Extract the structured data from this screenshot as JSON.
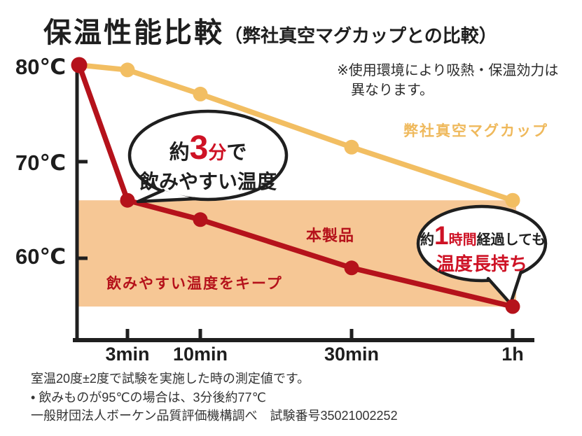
{
  "title": {
    "main": "保温性能比較",
    "sub": "（弊社真空マグカップとの比較）"
  },
  "note": {
    "line1": "※使用環境により吸熱・保温効力は",
    "line2": "異なります。"
  },
  "chart_data": {
    "type": "line",
    "title": "保温性能比較（弊社真空マグカップとの比較）",
    "x_minutes": [
      0,
      3,
      10,
      30,
      60
    ],
    "x_tick_labels": [
      "3min",
      "10min",
      "30min",
      "1h"
    ],
    "y_tick_labels": [
      "80℃",
      "70℃",
      "60℃"
    ],
    "y_tick_values": [
      80,
      70,
      60
    ],
    "ylim": [
      52,
      81
    ],
    "grid": false,
    "series": [
      {
        "name": "弊社真空マグカップ",
        "color": "#F2BE62",
        "values": [
          80,
          79.5,
          77,
          71.5,
          66
        ]
      },
      {
        "name": "本製品",
        "color": "#B5121B",
        "values": [
          80,
          66,
          64,
          59,
          55
        ]
      }
    ],
    "band": {
      "temp_from": 55,
      "temp_to": 66,
      "color": "#F6C795",
      "label": "飲みやすい温度をキープ"
    }
  },
  "annotations": {
    "bubble_3min": {
      "prefix": "約",
      "big": "3",
      "unit": "分",
      "suffix": "で",
      "line2": "飲みやすい温度"
    },
    "bubble_1h": {
      "prefix": "約",
      "big": "1",
      "unit": "時間",
      "suffix": "経過しても",
      "line2": "温度長持ち"
    }
  },
  "footer": {
    "line1": "室温20度±2度で試験を実施した時の測定値です。",
    "line2": "• 飲みものが95℃の場合は、3分後約77℃",
    "line3": "一般財団法人ボーケン品質評価機構調べ　試験番号35021002252"
  },
  "colors": {
    "red": "#B5121B",
    "bright_red": "#CE1225",
    "yellow": "#EFB95C",
    "band": "#F6C795",
    "axis": "#1F1F1F",
    "text": "#1E1E1E",
    "footer_text": "#333333"
  }
}
